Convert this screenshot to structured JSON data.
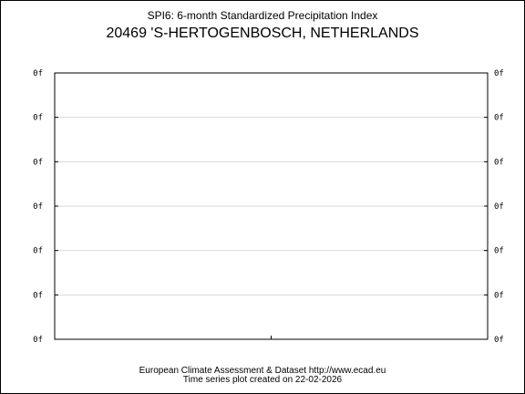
{
  "header": {
    "title": "SPI6: 6-month Standardized Precipitation Index",
    "station": "20469 'S-HERTOGENBOSCH, NETHERLANDS"
  },
  "footer": {
    "source": "European Climate Assessment & Dataset  http://www.ecad.eu",
    "created": "Time series plot created on 22-02-2026"
  },
  "chart_data": {
    "type": "line",
    "title": "SPI6: 6-month Standardized Precipitation Index",
    "subtitle": "20469 'S-HERTOGENBOSCH, NETHERLANDS",
    "xlabel": "",
    "ylabel": "",
    "y_tick_labels": [
      "0f",
      "0f",
      "0f",
      "0f",
      "0f",
      "0f",
      "0f"
    ],
    "series": [],
    "grid": true,
    "legend": "none"
  },
  "colors": {
    "frame": "#000000",
    "grid": "#d8d8d8",
    "background": "#ffffff"
  }
}
